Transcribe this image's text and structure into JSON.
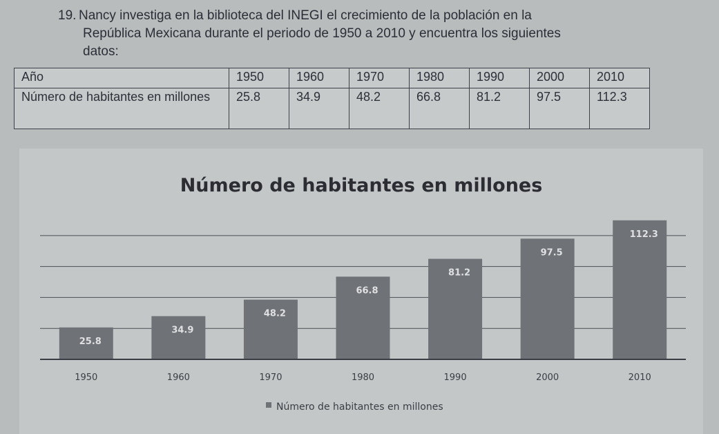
{
  "problem": {
    "number": "19.",
    "lines": [
      "Nancy investiga en la biblioteca del INEGI el crecimiento de la población en la",
      "República Mexicana durante el periodo de 1950 a 2010 y encuentra los siguientes",
      "datos:"
    ]
  },
  "table": {
    "header_label": "Año",
    "row_label": "Número de habitantes en millones",
    "years": [
      "1950",
      "1960",
      "1970",
      "1980",
      "1990",
      "2000",
      "2010"
    ],
    "values": [
      "25.8",
      "34.9",
      "48.2",
      "66.8",
      "81.2",
      "97.5",
      "112.3"
    ]
  },
  "chart_data": {
    "type": "bar",
    "title": "Número de habitantes en millones",
    "categories": [
      "1950",
      "1960",
      "1970",
      "1980",
      "1990",
      "2000",
      "2010"
    ],
    "series": [
      {
        "name": "Número de habitantes en millones",
        "values": [
          25.8,
          34.9,
          48.2,
          66.8,
          81.2,
          97.5,
          112.3
        ],
        "labels": [
          "25.8",
          "34.9",
          "48.2",
          "66.8",
          "81.2",
          "97.5",
          "112.3"
        ]
      }
    ],
    "ylim": [
      0,
      120
    ],
    "grid": true,
    "legend": "bottom",
    "bar_color": "#6f7277"
  }
}
